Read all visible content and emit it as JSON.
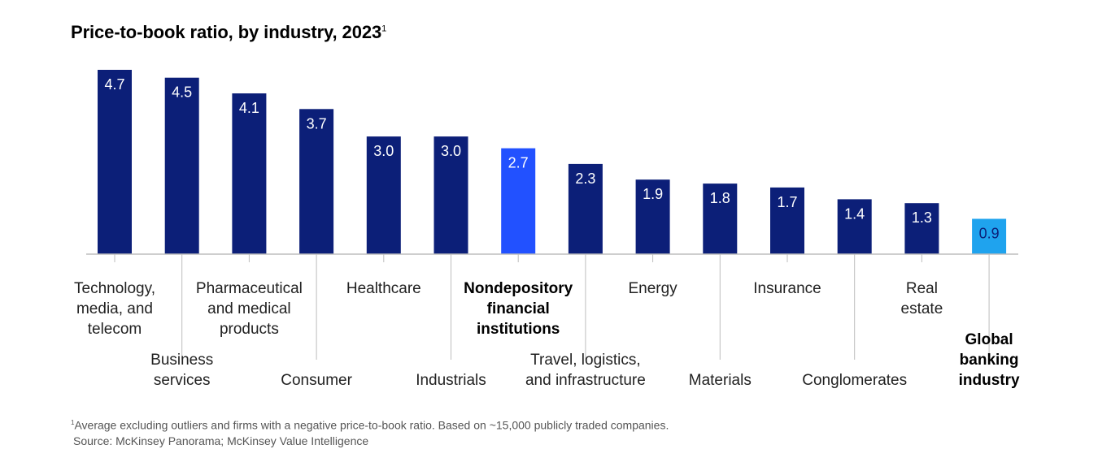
{
  "title": "Price-to-book ratio, by industry, 2023",
  "title_footnote_marker": "1",
  "footnote": {
    "marker": "1",
    "text": "Average excluding outliers and firms with a negative price-to-book ratio. Based on ~15,000 publicly traded companies."
  },
  "source": "Source: McKinsey Panorama; McKinsey Value Intelligence",
  "colors": {
    "industry_bar": "#0c1f78",
    "highlight_bar": "#2251ff",
    "banking_bar": "#1fa3ee",
    "baseline": "#bdbdbd"
  },
  "chart_data": {
    "type": "bar",
    "title": "Price-to-book ratio, by industry, 2023",
    "xlabel": "",
    "ylabel": "",
    "ylim": [
      0,
      4.7
    ],
    "grid": false,
    "legend": "none",
    "categories": [
      "Technology, media, and telecom",
      "Business services",
      "Pharmaceutical and medical products",
      "Consumer",
      "Healthcare",
      "Industrials",
      "Nondepository financial institutions",
      "Travel, logistics, and infrastructure",
      "Energy",
      "Materials",
      "Insurance",
      "Conglomerates",
      "Real estate",
      "Global banking industry"
    ],
    "values": [
      4.7,
      4.5,
      4.1,
      3.7,
      3.0,
      3.0,
      2.7,
      2.3,
      1.9,
      1.8,
      1.7,
      1.4,
      1.3,
      0.9
    ],
    "data_labels": [
      "4.7",
      "4.5",
      "4.1",
      "3.7",
      "3.0",
      "3.0",
      "2.7",
      "2.3",
      "1.9",
      "1.8",
      "1.7",
      "1.4",
      "1.3",
      "0.9"
    ],
    "category_lines": [
      [
        "Technology,",
        "media, and",
        "telecom"
      ],
      [
        "Business",
        "services"
      ],
      [
        "Pharmaceutical",
        "and medical",
        "products"
      ],
      [
        "Consumer"
      ],
      [
        "Healthcare"
      ],
      [
        "Industrials"
      ],
      [
        "Nondepository",
        "financial",
        "institutions"
      ],
      [
        "Travel, logistics,",
        "and infrastructure"
      ],
      [
        "Energy"
      ],
      [
        "Materials"
      ],
      [
        "Insurance"
      ],
      [
        "Conglomerates"
      ],
      [
        "Real",
        "estate"
      ],
      [
        "Global",
        "banking",
        "industry"
      ]
    ],
    "bar_colors": [
      "#0c1f78",
      "#0c1f78",
      "#0c1f78",
      "#0c1f78",
      "#0c1f78",
      "#0c1f78",
      "#2251ff",
      "#0c1f78",
      "#0c1f78",
      "#0c1f78",
      "#0c1f78",
      "#0c1f78",
      "#0c1f78",
      "#1fa3ee"
    ],
    "label_colors": [
      "#ffffff",
      "#ffffff",
      "#ffffff",
      "#ffffff",
      "#ffffff",
      "#ffffff",
      "#ffffff",
      "#ffffff",
      "#ffffff",
      "#ffffff",
      "#ffffff",
      "#ffffff",
      "#ffffff",
      "#0c1f78"
    ],
    "emphasized_categories": [
      "Nondepository financial institutions",
      "Global banking industry"
    ]
  }
}
